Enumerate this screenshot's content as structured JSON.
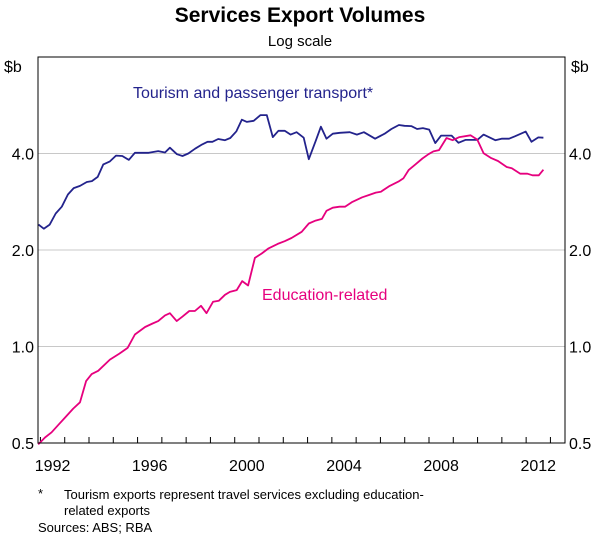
{
  "chart_data": {
    "type": "line",
    "title": "Services Export Volumes",
    "subtitle": "Log scale",
    "ylabel_left": "$b",
    "ylabel_right": "$b",
    "yscale": "log",
    "ylim": [
      0.5,
      8.0
    ],
    "xlim": [
      1991.9,
      2013.6
    ],
    "yticks": [
      0.5,
      1.0,
      2.0,
      4.0
    ],
    "ytick_labels": [
      "0.5",
      "1.0",
      "2.0",
      "4.0"
    ],
    "xtick_labels": [
      "1992",
      "1996",
      "2000",
      "2004",
      "2008",
      "2012"
    ],
    "xtick_years": [
      1992,
      1996,
      2000,
      2004,
      2008,
      2012
    ],
    "grid": true,
    "series": [
      {
        "name": "Tourism and passenger transport*",
        "color": "#23238c",
        "points": [
          [
            1991.92,
            2.4
          ],
          [
            1992.14,
            2.33
          ],
          [
            1992.38,
            2.4
          ],
          [
            1992.63,
            2.6
          ],
          [
            1992.88,
            2.73
          ],
          [
            1993.13,
            2.98
          ],
          [
            1993.37,
            3.12
          ],
          [
            1993.63,
            3.17
          ],
          [
            1993.91,
            3.26
          ],
          [
            1994.12,
            3.28
          ],
          [
            1994.36,
            3.38
          ],
          [
            1994.59,
            3.7
          ],
          [
            1994.86,
            3.78
          ],
          [
            1995.11,
            3.94
          ],
          [
            1995.37,
            3.93
          ],
          [
            1995.64,
            3.82
          ],
          [
            1995.89,
            4.02
          ],
          [
            1996.18,
            4.02
          ],
          [
            1996.46,
            4.02
          ],
          [
            1996.85,
            4.07
          ],
          [
            1997.13,
            4.03
          ],
          [
            1997.33,
            4.17
          ],
          [
            1997.62,
            3.98
          ],
          [
            1997.85,
            3.93
          ],
          [
            1998.09,
            4.0
          ],
          [
            1998.37,
            4.14
          ],
          [
            1998.66,
            4.27
          ],
          [
            1998.88,
            4.35
          ],
          [
            1999.08,
            4.35
          ],
          [
            1999.32,
            4.44
          ],
          [
            1999.6,
            4.4
          ],
          [
            1999.82,
            4.47
          ],
          [
            2000.07,
            4.69
          ],
          [
            2000.29,
            5.1
          ],
          [
            2000.5,
            5.02
          ],
          [
            2000.78,
            5.06
          ],
          [
            2001.06,
            5.27
          ],
          [
            2001.32,
            5.27
          ],
          [
            2001.57,
            4.5
          ],
          [
            2001.8,
            4.71
          ],
          [
            2002.06,
            4.71
          ],
          [
            2002.3,
            4.58
          ],
          [
            2002.55,
            4.66
          ],
          [
            2002.84,
            4.48
          ],
          [
            2003.05,
            3.84
          ],
          [
            2003.33,
            4.37
          ],
          [
            2003.55,
            4.85
          ],
          [
            2003.78,
            4.45
          ],
          [
            2004.04,
            4.61
          ],
          [
            2004.33,
            4.64
          ],
          [
            2004.74,
            4.66
          ],
          [
            2005.03,
            4.58
          ],
          [
            2005.32,
            4.66
          ],
          [
            2005.78,
            4.45
          ],
          [
            2006.17,
            4.61
          ],
          [
            2006.45,
            4.77
          ],
          [
            2006.76,
            4.91
          ],
          [
            2006.99,
            4.88
          ],
          [
            2007.27,
            4.87
          ],
          [
            2007.51,
            4.77
          ],
          [
            2007.75,
            4.8
          ],
          [
            2008.01,
            4.75
          ],
          [
            2008.26,
            4.31
          ],
          [
            2008.5,
            4.55
          ],
          [
            2008.93,
            4.55
          ],
          [
            2009.21,
            4.32
          ],
          [
            2009.5,
            4.41
          ],
          [
            2009.99,
            4.41
          ],
          [
            2010.25,
            4.58
          ],
          [
            2010.73,
            4.4
          ],
          [
            2010.99,
            4.45
          ],
          [
            2011.3,
            4.45
          ],
          [
            2011.55,
            4.53
          ],
          [
            2011.98,
            4.68
          ],
          [
            2012.22,
            4.35
          ],
          [
            2012.5,
            4.49
          ],
          [
            2012.71,
            4.48
          ]
        ]
      },
      {
        "name": "Education-related",
        "color": "#e6007e",
        "points": [
          [
            1991.91,
            0.495
          ],
          [
            1992.19,
            0.52
          ],
          [
            1992.46,
            0.54
          ],
          [
            1992.74,
            0.57
          ],
          [
            1993.01,
            0.6
          ],
          [
            1993.35,
            0.64
          ],
          [
            1993.63,
            0.67
          ],
          [
            1993.88,
            0.78
          ],
          [
            1994.11,
            0.82
          ],
          [
            1994.38,
            0.84
          ],
          [
            1994.86,
            0.91
          ],
          [
            1995.25,
            0.95
          ],
          [
            1995.59,
            0.99
          ],
          [
            1995.89,
            1.09
          ],
          [
            1996.31,
            1.15
          ],
          [
            1996.62,
            1.18
          ],
          [
            1996.85,
            1.2
          ],
          [
            1997.13,
            1.25
          ],
          [
            1997.33,
            1.27
          ],
          [
            1997.61,
            1.2
          ],
          [
            1997.85,
            1.24
          ],
          [
            1998.13,
            1.29
          ],
          [
            1998.36,
            1.29
          ],
          [
            1998.61,
            1.34
          ],
          [
            1998.84,
            1.27
          ],
          [
            1999.11,
            1.38
          ],
          [
            1999.35,
            1.39
          ],
          [
            1999.6,
            1.45
          ],
          [
            1999.8,
            1.48
          ],
          [
            2000.08,
            1.5
          ],
          [
            2000.31,
            1.6
          ],
          [
            2000.55,
            1.55
          ],
          [
            2000.83,
            1.89
          ],
          [
            2001.11,
            1.95
          ],
          [
            2001.38,
            2.02
          ],
          [
            2001.77,
            2.09
          ],
          [
            2002.06,
            2.13
          ],
          [
            2002.34,
            2.18
          ],
          [
            2002.76,
            2.28
          ],
          [
            2003.05,
            2.42
          ],
          [
            2003.33,
            2.47
          ],
          [
            2003.59,
            2.5
          ],
          [
            2003.78,
            2.65
          ],
          [
            2004.04,
            2.71
          ],
          [
            2004.32,
            2.73
          ],
          [
            2004.54,
            2.73
          ],
          [
            2004.82,
            2.82
          ],
          [
            2005.25,
            2.92
          ],
          [
            2005.53,
            2.97
          ],
          [
            2005.81,
            3.02
          ],
          [
            2006.02,
            3.04
          ],
          [
            2006.38,
            3.17
          ],
          [
            2006.74,
            3.27
          ],
          [
            2006.95,
            3.35
          ],
          [
            2007.16,
            3.55
          ],
          [
            2007.44,
            3.7
          ],
          [
            2007.73,
            3.86
          ],
          [
            2007.98,
            3.98
          ],
          [
            2008.18,
            4.06
          ],
          [
            2008.41,
            4.1
          ],
          [
            2008.72,
            4.47
          ],
          [
            2008.97,
            4.4
          ],
          [
            2009.25,
            4.5
          ],
          [
            2009.71,
            4.56
          ],
          [
            2009.99,
            4.42
          ],
          [
            2010.25,
            4.01
          ],
          [
            2010.56,
            3.87
          ],
          [
            2010.84,
            3.79
          ],
          [
            2011.2,
            3.63
          ],
          [
            2011.41,
            3.6
          ],
          [
            2011.76,
            3.46
          ],
          [
            2012.05,
            3.46
          ],
          [
            2012.26,
            3.42
          ],
          [
            2012.52,
            3.42
          ],
          [
            2012.71,
            3.56
          ]
        ]
      }
    ],
    "footnote_marker": "*",
    "footnote_line1": "Tourism exports represent travel services excluding education-",
    "footnote_line2": "related exports",
    "sources": "Sources: ABS; RBA"
  }
}
